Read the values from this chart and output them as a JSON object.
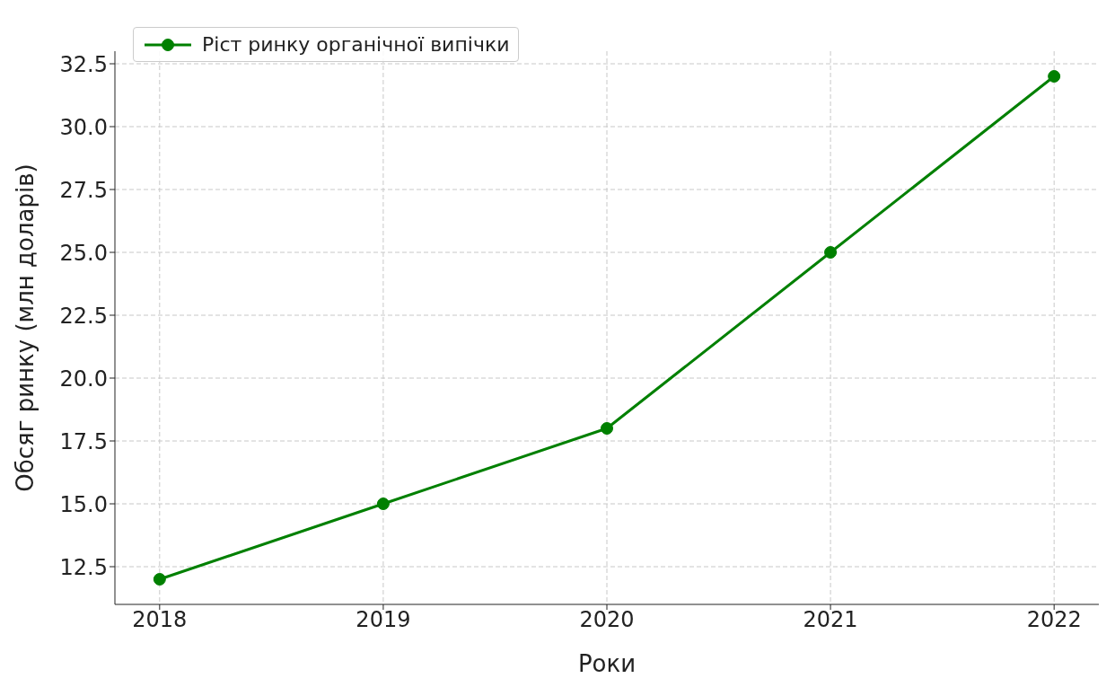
{
  "chart_data": {
    "type": "line",
    "xlabel": "Роки",
    "ylabel": "Обсяг ринку (млн доларів)",
    "x": [
      2018,
      2019,
      2020,
      2021,
      2022
    ],
    "series": [
      {
        "name": "Ріст ринку органічної випічки",
        "color": "#008000",
        "values": [
          12,
          15,
          18,
          25,
          32
        ]
      }
    ],
    "xlim": [
      2017.8,
      2022.2
    ],
    "xticks": [
      2018,
      2019,
      2020,
      2021,
      2022
    ],
    "ylim": [
      11,
      33
    ],
    "yticks": [
      {
        "value": 12.5,
        "label": "12.5"
      },
      {
        "value": 15,
        "label": "15.0"
      },
      {
        "value": 17.5,
        "label": "17.5"
      },
      {
        "value": 20,
        "label": "20.0"
      },
      {
        "value": 22.5,
        "label": "22.5"
      },
      {
        "value": 25,
        "label": "25.0"
      },
      {
        "value": 27.5,
        "label": "27.5"
      },
      {
        "value": 30,
        "label": "30.0"
      },
      {
        "value": 32.5,
        "label": "32.5"
      }
    ],
    "grid": true,
    "legend": "top left",
    "marker": "circle",
    "line_style": "solid"
  }
}
